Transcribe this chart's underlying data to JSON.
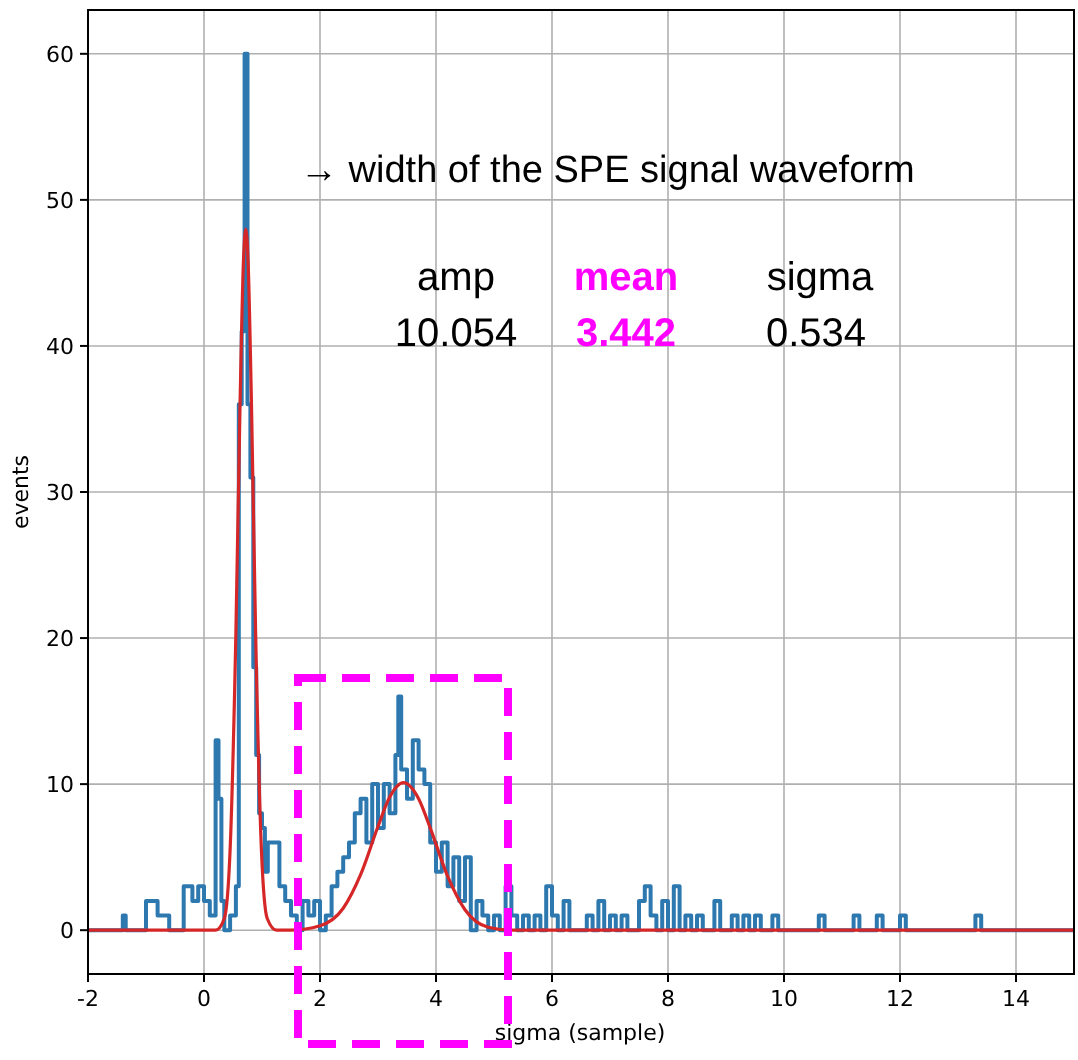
{
  "chart_data": {
    "type": "step",
    "xlabel": "sigma (sample)",
    "ylabel": "events",
    "xlim": [
      -2,
      15
    ],
    "ylim": [
      -3,
      63
    ],
    "xticks": [
      -2,
      0,
      2,
      4,
      6,
      8,
      10,
      12,
      14
    ],
    "yticks": [
      0,
      10,
      20,
      30,
      40,
      50,
      60
    ],
    "grid": true,
    "annotations": [
      "→ width of the SPE signal waveform",
      "amp",
      "mean",
      "sigma",
      "10.054",
      "3.442",
      "0.534"
    ],
    "series": [
      {
        "color": "#2e78b0",
        "x": [
          -2,
          -1.4,
          -1.35,
          -1.0,
          -0.8,
          -0.7,
          -0.6,
          -0.35,
          -0.2,
          -0.1,
          0,
          0.1,
          0.2,
          0.25,
          0.3,
          0.35,
          0.45,
          0.55,
          0.6,
          0.65,
          0.7,
          0.75,
          0.8,
          0.85,
          0.9,
          0.95,
          1.0,
          1.05,
          1.1,
          1.2,
          1.3,
          1.4,
          1.5,
          1.6,
          1.7,
          1.8,
          1.9,
          2.0,
          2.1,
          2.2,
          2.3,
          2.4,
          2.5,
          2.6,
          2.7,
          2.8,
          2.9,
          3.0,
          3.1,
          3.2,
          3.3,
          3.35,
          3.4,
          3.5,
          3.6,
          3.7,
          3.8,
          3.9,
          4.0,
          4.1,
          4.2,
          4.3,
          4.4,
          4.5,
          4.6,
          4.7,
          4.8,
          4.9,
          5.0,
          5.1,
          5.2,
          5.3,
          5.4,
          5.5,
          5.6,
          5.7,
          5.8,
          5.9,
          6.0,
          6.1,
          6.2,
          6.3,
          6.6,
          6.7,
          6.8,
          6.9,
          7.0,
          7.1,
          7.2,
          7.3,
          7.5,
          7.6,
          7.7,
          7.8,
          7.9,
          8.0,
          8.1,
          8.2,
          8.3,
          8.4,
          8.5,
          8.6,
          8.8,
          8.9,
          9.1,
          9.2,
          9.3,
          9.4,
          9.5,
          9.6,
          9.8,
          9.9,
          10.6,
          10.7,
          11.2,
          11.3,
          11.6,
          11.7,
          12.0,
          12.1,
          13.3,
          13.4,
          15
        ],
        "values": [
          0,
          1,
          0,
          2,
          1,
          1,
          0,
          3,
          2,
          3,
          2,
          1,
          13,
          9,
          2,
          0,
          1,
          3,
          36,
          41,
          60,
          36,
          31,
          18,
          12,
          8,
          7,
          4,
          6,
          6,
          3,
          2,
          1,
          0,
          2,
          1,
          2,
          0,
          1,
          3,
          4,
          5,
          6,
          8,
          9,
          6,
          10,
          7,
          10,
          8,
          12,
          16,
          11,
          9,
          13,
          11,
          10,
          6,
          4,
          6,
          3,
          5,
          2,
          5,
          0,
          2,
          1,
          0,
          1,
          0,
          3,
          1,
          0,
          1,
          0,
          1,
          0,
          3,
          1,
          0,
          2,
          0,
          1,
          0,
          2,
          0,
          1,
          0,
          1,
          0,
          2,
          3,
          1,
          0,
          2,
          0,
          3,
          0,
          1,
          0,
          1,
          0,
          2,
          0,
          1,
          0,
          1,
          0,
          1,
          0,
          1,
          0,
          1,
          0,
          1,
          0,
          1,
          0,
          1,
          0,
          1,
          0,
          0
        ]
      },
      {
        "type": "line",
        "color": "#d62728",
        "x": [
          -2,
          0.2,
          0.35,
          0.45,
          0.55,
          0.62,
          0.68,
          0.72,
          0.76,
          0.82,
          0.89,
          0.99,
          1.09,
          1.25,
          1.5,
          2.0,
          2.4,
          2.7,
          3.0,
          3.2,
          3.44,
          3.7,
          3.9,
          4.2,
          4.5,
          4.9,
          5.3,
          15
        ],
        "values": [
          0,
          0,
          0.8,
          5.5,
          20.4,
          35.7,
          45.8,
          48,
          45.8,
          35.7,
          20.4,
          5.5,
          0.8,
          0,
          0,
          0.3,
          1.5,
          3.8,
          7.1,
          9.1,
          10.1,
          9.0,
          7.0,
          3.7,
          1.4,
          0.2,
          0,
          0
        ]
      }
    ]
  }
}
